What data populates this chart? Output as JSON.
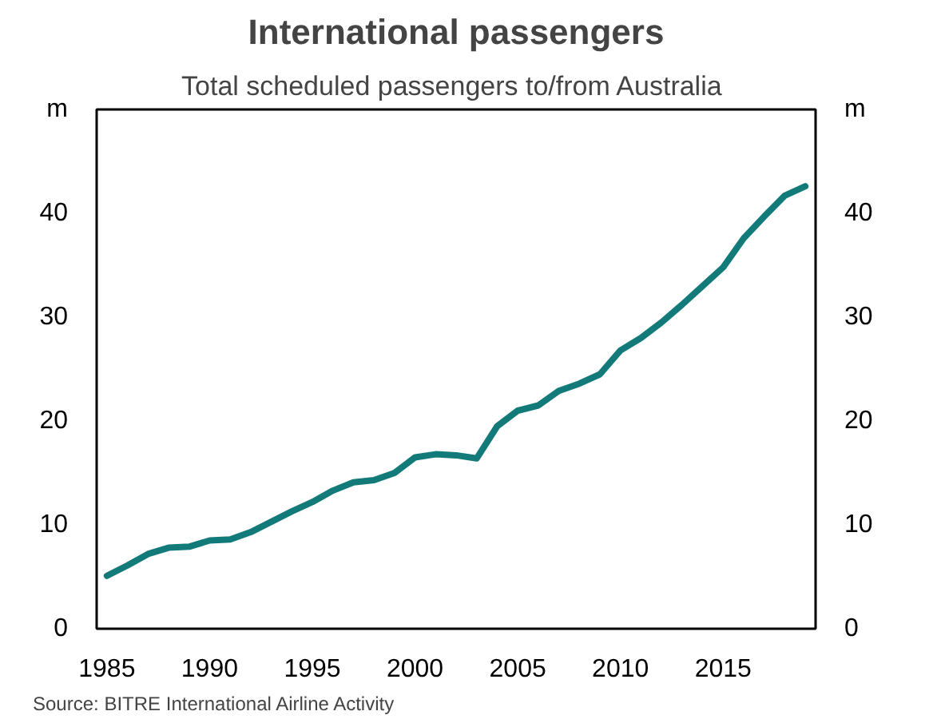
{
  "chart_data": {
    "type": "line",
    "title": "International passengers",
    "subtitle": "Total scheduled  passengers to/from Australia",
    "x": [
      1985,
      1986,
      1987,
      1988,
      1989,
      1990,
      1991,
      1992,
      1993,
      1994,
      1995,
      1996,
      1997,
      1998,
      1999,
      2000,
      2001,
      2002,
      2003,
      2004,
      2005,
      2006,
      2007,
      2008,
      2009,
      2010,
      2011,
      2012,
      2013,
      2014,
      2015,
      2016,
      2017,
      2018,
      2019
    ],
    "series": [
      {
        "color": "#137a7a",
        "values": [
          5.1,
          6.1,
          7.2,
          7.8,
          7.9,
          8.5,
          8.6,
          9.3,
          10.3,
          11.3,
          12.2,
          13.3,
          14.1,
          14.3,
          15.0,
          16.5,
          16.8,
          16.7,
          16.4,
          19.5,
          21.0,
          21.5,
          22.9,
          23.6,
          24.5,
          26.8,
          28.0,
          29.5,
          31.2,
          33.0,
          34.8,
          37.6,
          39.7,
          41.7,
          42.6
        ]
      }
    ],
    "xlim": [
      1984.5,
      2019.5
    ],
    "xticks": [
      1985,
      1990,
      1995,
      2000,
      2005,
      2010,
      2015
    ],
    "ylim": [
      0,
      50
    ],
    "yticks": [
      0,
      10,
      20,
      30,
      40,
      {
        "value": 50,
        "label": "m"
      }
    ],
    "y2lim": [
      0,
      50
    ],
    "y2ticks": [
      0,
      10,
      20,
      30,
      40,
      {
        "value": 50,
        "label": "m"
      }
    ],
    "grid": false,
    "marker": "none",
    "line_style": "solid",
    "annotations": [
      "Source: BITRE International Airline Activity"
    ]
  }
}
